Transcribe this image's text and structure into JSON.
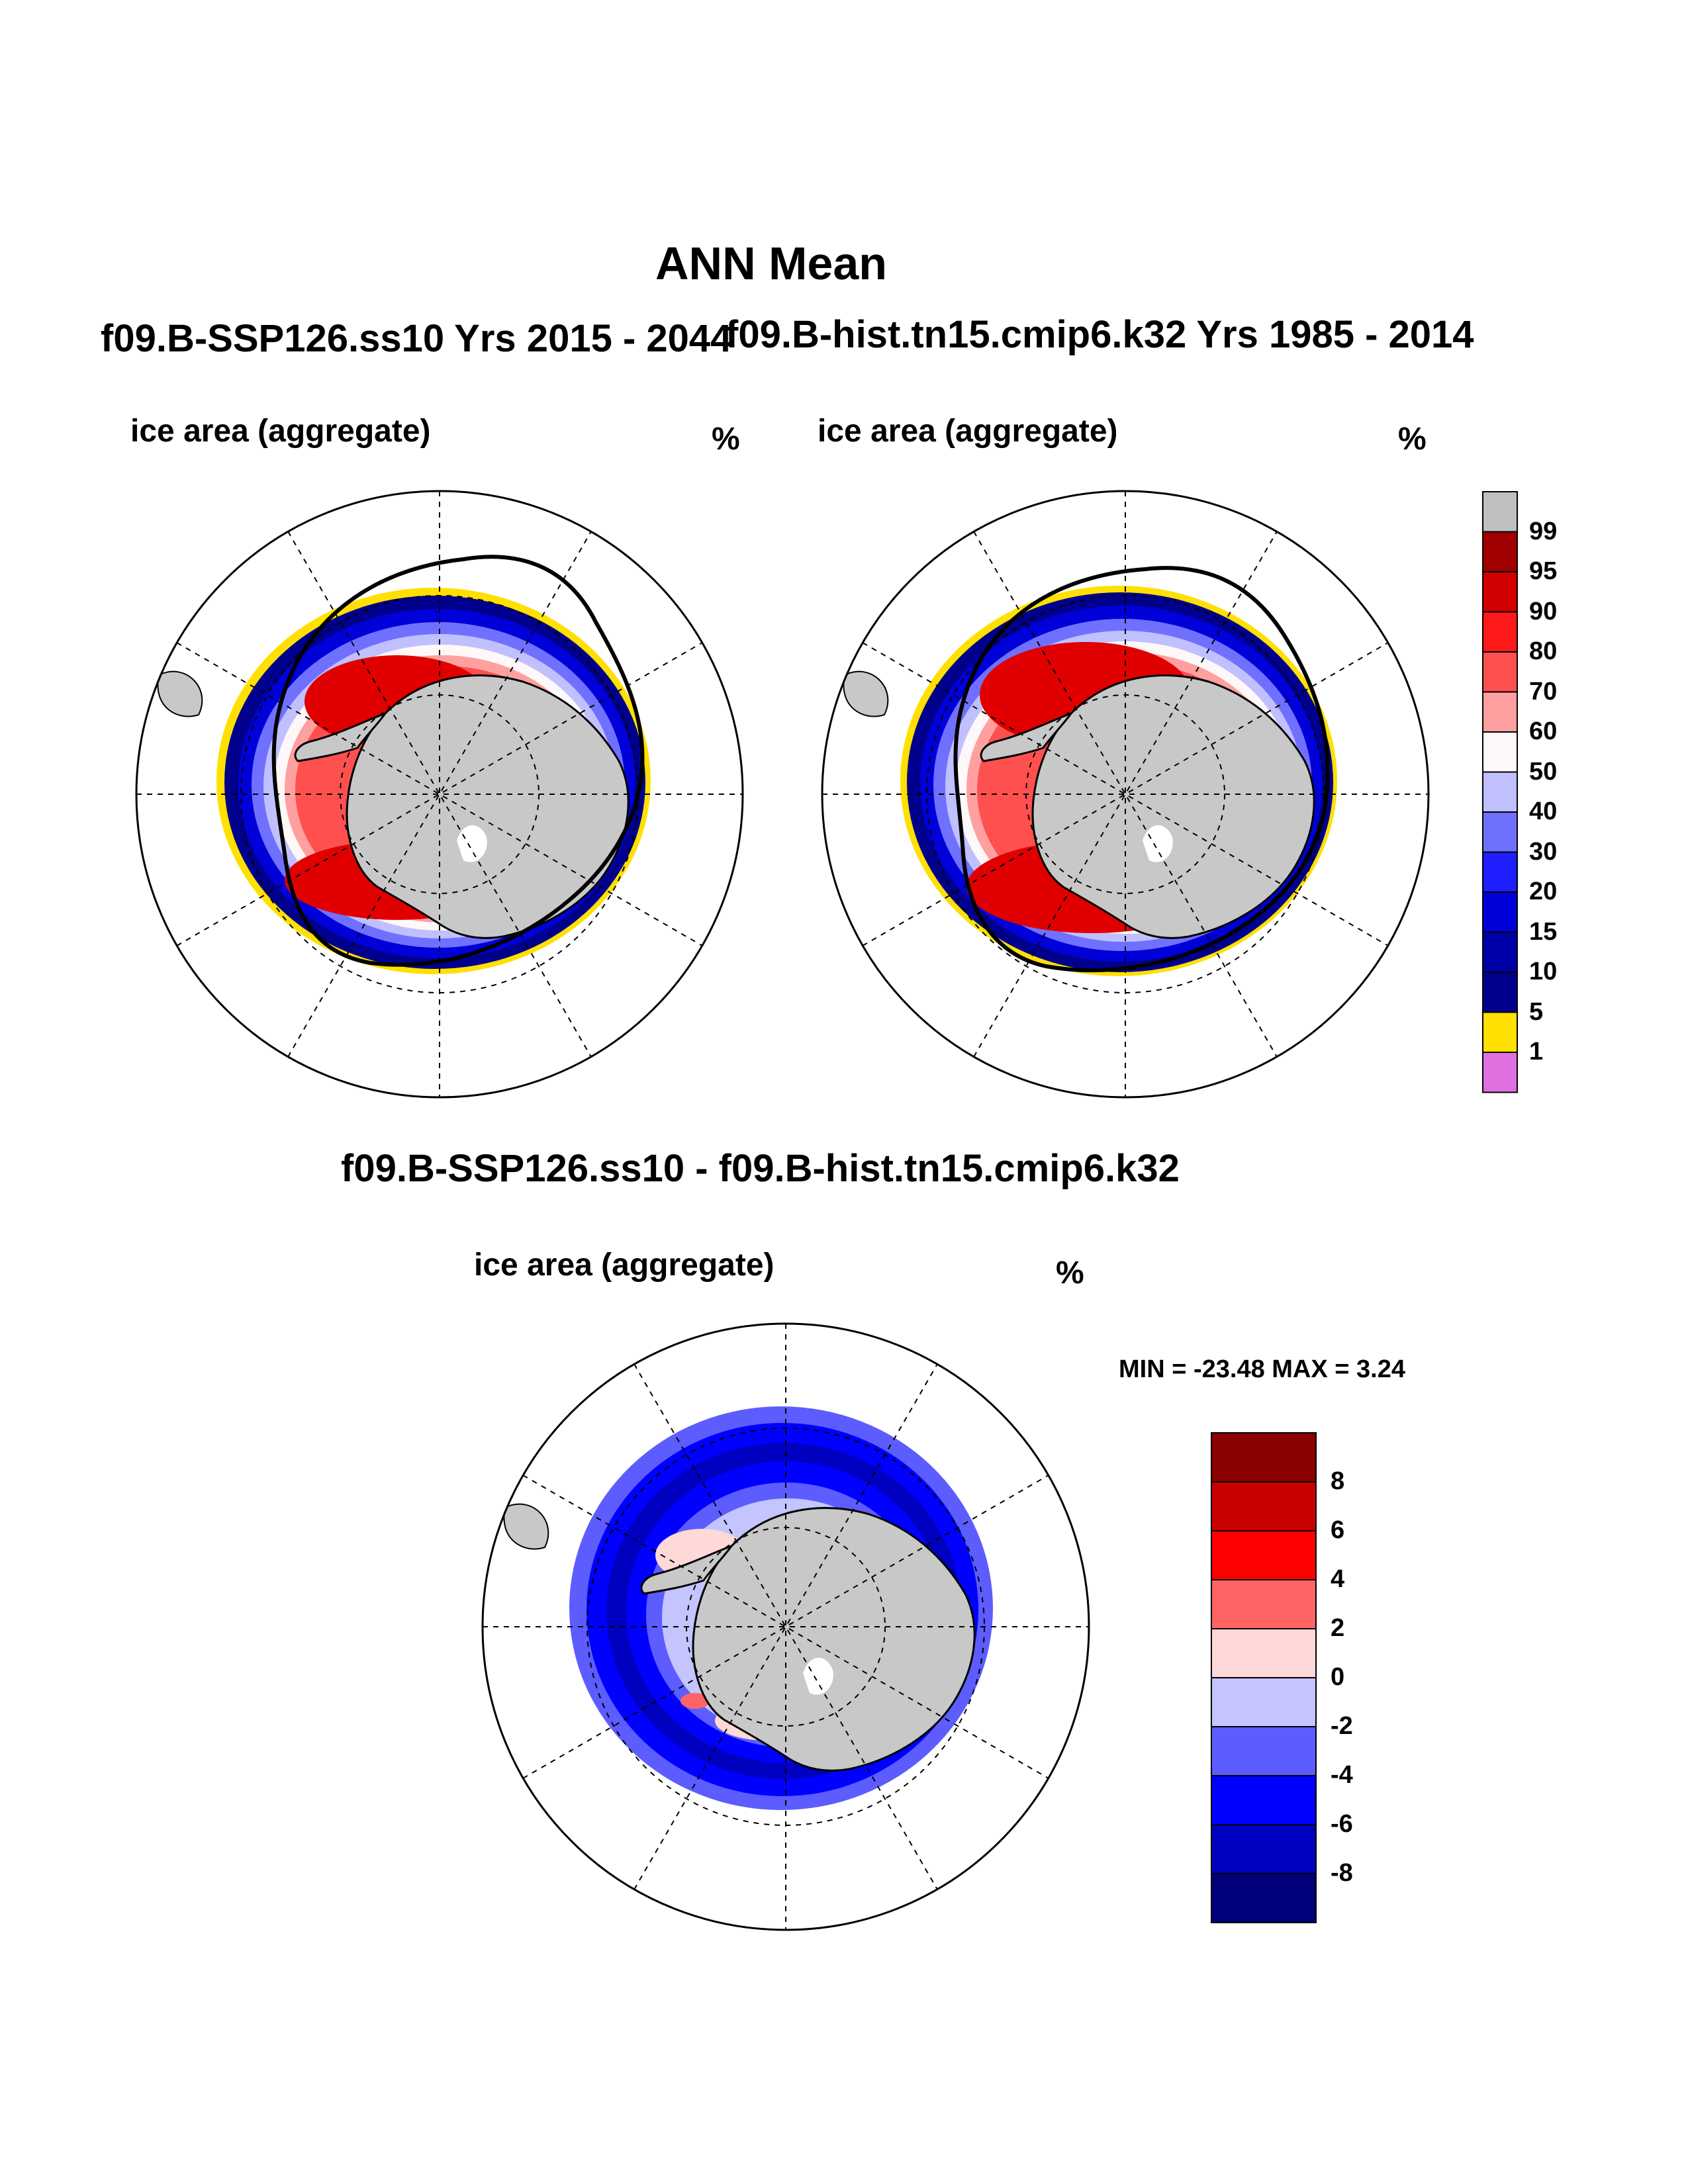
{
  "page_title": "ANN Mean",
  "panels": [
    {
      "subtitle": "f09.B-SSP126.ss10  Yrs 2015 - 2044",
      "variable": "ice area  (aggregate)",
      "units": "%"
    },
    {
      "subtitle": "f09.B-hist.tn15.cmip6.k32  Yrs 1985 - 2014",
      "variable": "ice area  (aggregate)",
      "units": "%"
    },
    {
      "subtitle": "f09.B-SSP126.ss10 - f09.B-hist.tn15.cmip6.k32",
      "variable": "ice area  (aggregate)",
      "units": "%",
      "stats": "MIN = -23.48 MAX =   3.24"
    }
  ],
  "colorbar_abs": {
    "labels": [
      "99",
      "95",
      "90",
      "80",
      "70",
      "60",
      "50",
      "40",
      "30",
      "20",
      "15",
      "10",
      "5",
      "1"
    ],
    "colors": [
      "#c0c0c0",
      "#a00000",
      "#d20000",
      "#ff1a1a",
      "#ff5050",
      "#ffa0a0",
      "#fff8f8",
      "#c0c0ff",
      "#7070ff",
      "#1e1eff",
      "#0000d8",
      "#0000a8",
      "#00008c",
      "#ffe000",
      "#e070e0"
    ]
  },
  "colorbar_diff": {
    "labels": [
      "8",
      "6",
      "4",
      "2",
      "0",
      "-2",
      "-4",
      "-6",
      "-8"
    ],
    "colors": [
      "#8b0000",
      "#c80000",
      "#ff0000",
      "#ff6464",
      "#ffd8d8",
      "#c4c4ff",
      "#5c5cff",
      "#0000ff",
      "#0000c0",
      "#00007a"
    ]
  }
}
